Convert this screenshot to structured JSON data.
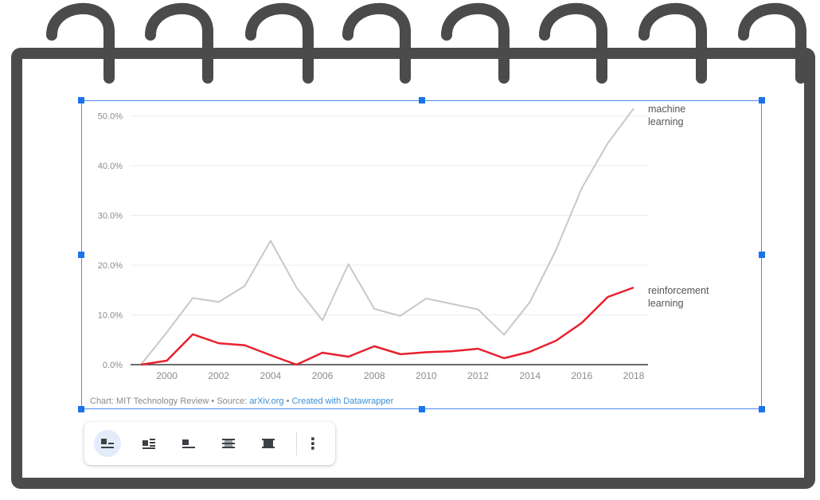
{
  "chart_data": {
    "type": "line",
    "x": [
      1999,
      2000,
      2001,
      2002,
      2003,
      2004,
      2005,
      2006,
      2007,
      2008,
      2009,
      2010,
      2011,
      2012,
      2013,
      2014,
      2015,
      2016,
      2017,
      2018
    ],
    "series": [
      {
        "name": "machine learning",
        "color": "#c8c8c8",
        "values": [
          0.0,
          6.5,
          13.4,
          12.6,
          15.8,
          24.9,
          15.5,
          8.9,
          20.2,
          11.2,
          9.8,
          13.3,
          12.2,
          11.1,
          6.0,
          12.6,
          23.0,
          35.5,
          44.5,
          51.5
        ]
      },
      {
        "name": "reinforcement learning",
        "color": "#e8202e",
        "values": [
          0.0,
          0.8,
          6.1,
          4.3,
          3.9,
          1.9,
          0.0,
          2.4,
          1.6,
          3.7,
          2.1,
          2.5,
          2.7,
          3.2,
          1.3,
          2.6,
          4.8,
          8.4,
          13.6,
          15.5
        ]
      }
    ],
    "ylim": [
      0,
      52
    ],
    "y_ticks": [
      "0.0%",
      "10.0%",
      "20.0%",
      "30.0%",
      "40.0%",
      "50.0%"
    ],
    "y_tick_values": [
      0,
      10,
      20,
      30,
      40,
      50
    ],
    "x_ticks": [
      "2000",
      "2002",
      "2004",
      "2006",
      "2008",
      "2010",
      "2012",
      "2014",
      "2016",
      "2018"
    ],
    "x_tick_values": [
      2000,
      2002,
      2004,
      2006,
      2008,
      2010,
      2012,
      2014,
      2016,
      2018
    ],
    "labels": {
      "ml_line1": "machine",
      "ml_line2": "learning",
      "rl_line1": "reinforcement",
      "rl_line2": "learning"
    },
    "grid": true,
    "xlabel": "",
    "ylabel": ""
  },
  "source": {
    "prefix": "Chart: MIT Technology Review • Source: ",
    "link1": "arXiv.org",
    "sep": " • ",
    "link2": "Created with Datawrapper"
  },
  "toolbar": {
    "buttons": [
      {
        "name": "inline-layout-icon",
        "active": true
      },
      {
        "name": "wrap-text-icon",
        "active": false
      },
      {
        "name": "break-text-icon",
        "active": false
      },
      {
        "name": "behind-text-icon",
        "active": false
      },
      {
        "name": "in-front-of-text-icon",
        "active": false
      }
    ],
    "more": "⋮"
  },
  "colors": {
    "frame": "#4b4b4b",
    "selection": "#4a8af4",
    "handle": "#1a73e8",
    "ml_line": "#c8c8c8",
    "rl_line": "#e8202e"
  }
}
